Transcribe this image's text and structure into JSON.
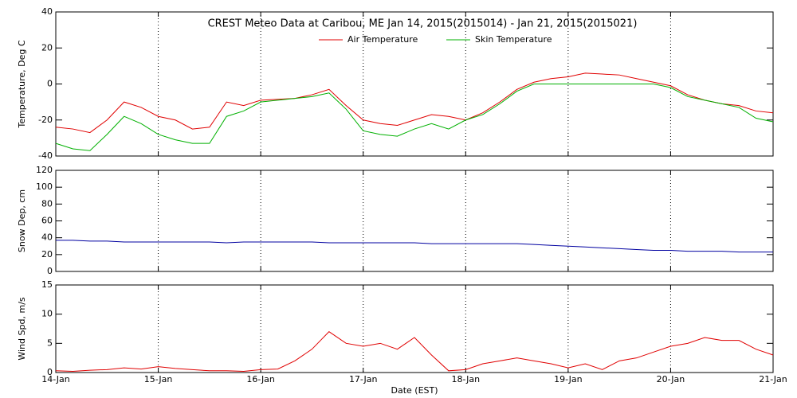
{
  "chart_data": [
    {
      "type": "line",
      "title": "CREST Meteo Data at Caribou, ME   Jan 14, 2015(2015014) - Jan 21, 2015(2015021)",
      "ylabel": "Temperature, Deg C",
      "xlim": [
        0,
        168
      ],
      "ylim": [
        -40,
        40
      ],
      "yticks": [
        -40,
        -20,
        0,
        20,
        40
      ],
      "xticks": [
        {
          "value": 0,
          "label": "14-Jan"
        },
        {
          "value": 24,
          "label": "15-Jan"
        },
        {
          "value": 48,
          "label": "16-Jan"
        },
        {
          "value": 72,
          "label": "17-Jan"
        },
        {
          "value": 96,
          "label": "18-Jan"
        },
        {
          "value": 120,
          "label": "19-Jan"
        },
        {
          "value": 144,
          "label": "20-Jan"
        },
        {
          "value": 168,
          "label": "21-Jan"
        }
      ],
      "grid": true,
      "x": [
        0,
        4,
        8,
        12,
        16,
        20,
        24,
        28,
        32,
        36,
        40,
        44,
        48,
        52,
        56,
        60,
        64,
        68,
        72,
        76,
        80,
        84,
        88,
        92,
        96,
        100,
        104,
        108,
        112,
        116,
        120,
        124,
        128,
        132,
        136,
        140,
        144,
        148,
        152,
        156,
        160,
        164,
        168
      ],
      "series": [
        {
          "name": "Air Temperature",
          "color": "#e00000",
          "values": [
            -24,
            -25,
            -27,
            -20,
            -10,
            -13,
            -18,
            -20,
            -25,
            -24,
            -10,
            -12,
            -9,
            -8.5,
            -8,
            -6,
            -3,
            -12,
            -20,
            -22,
            -23,
            -20,
            -17,
            -18,
            -20,
            -16,
            -10,
            -3,
            1,
            3,
            4,
            6,
            5.5,
            5,
            3,
            1,
            -1,
            -6,
            -9,
            -11,
            -12,
            -15,
            -16
          ]
        },
        {
          "name": "Skin Temperature",
          "color": "#00b000",
          "values": [
            -33,
            -36,
            -37,
            -28,
            -18,
            -22,
            -28,
            -31,
            -33,
            -33,
            -18,
            -15,
            -10,
            -9,
            -8,
            -7,
            -5,
            -14,
            -26,
            -28,
            -29,
            -25,
            -22,
            -25,
            -20,
            -17,
            -11,
            -4,
            0,
            0,
            0,
            0,
            0,
            0,
            0,
            0,
            -2,
            -7,
            -9,
            -11,
            -13,
            -19,
            -21
          ]
        }
      ]
    },
    {
      "type": "line",
      "ylabel": "Snow Dep, cm",
      "xlim": [
        0,
        168
      ],
      "ylim": [
        0,
        120
      ],
      "yticks": [
        0,
        20,
        40,
        60,
        80,
        100,
        120
      ],
      "xticks": [
        {
          "value": 0,
          "label": "14-Jan"
        },
        {
          "value": 24,
          "label": "15-Jan"
        },
        {
          "value": 48,
          "label": "16-Jan"
        },
        {
          "value": 72,
          "label": "17-Jan"
        },
        {
          "value": 96,
          "label": "18-Jan"
        },
        {
          "value": 120,
          "label": "19-Jan"
        },
        {
          "value": 144,
          "label": "20-Jan"
        },
        {
          "value": 168,
          "label": "21-Jan"
        }
      ],
      "grid": true,
      "x": [
        0,
        4,
        8,
        12,
        16,
        20,
        24,
        28,
        32,
        36,
        40,
        44,
        48,
        52,
        56,
        60,
        64,
        68,
        72,
        76,
        80,
        84,
        88,
        92,
        96,
        100,
        104,
        108,
        112,
        116,
        120,
        124,
        128,
        132,
        136,
        140,
        144,
        148,
        152,
        156,
        160,
        164,
        168
      ],
      "series": [
        {
          "color": "#0000a0",
          "values": [
            37,
            37,
            36,
            36,
            35,
            35,
            35,
            35,
            35,
            35,
            34,
            35,
            35,
            35,
            35,
            35,
            34,
            34,
            34,
            34,
            34,
            34,
            33,
            33,
            33,
            33,
            33,
            33,
            32,
            31,
            30,
            29,
            28,
            27,
            26,
            25,
            25,
            24,
            24,
            24,
            23,
            23,
            23
          ]
        }
      ]
    },
    {
      "type": "line",
      "ylabel": "Wind Spd, m/s",
      "xlabel": "Date (EST)",
      "xlim": [
        0,
        168
      ],
      "ylim": [
        0,
        15
      ],
      "yticks": [
        0,
        5,
        10,
        15
      ],
      "xticks": [
        {
          "value": 0,
          "label": "14-Jan"
        },
        {
          "value": 24,
          "label": "15-Jan"
        },
        {
          "value": 48,
          "label": "16-Jan"
        },
        {
          "value": 72,
          "label": "17-Jan"
        },
        {
          "value": 96,
          "label": "18-Jan"
        },
        {
          "value": 120,
          "label": "19-Jan"
        },
        {
          "value": 144,
          "label": "20-Jan"
        },
        {
          "value": 168,
          "label": "21-Jan"
        }
      ],
      "grid": true,
      "x": [
        0,
        4,
        8,
        12,
        16,
        20,
        24,
        28,
        32,
        36,
        40,
        44,
        48,
        52,
        56,
        60,
        64,
        68,
        72,
        76,
        80,
        84,
        88,
        92,
        96,
        100,
        104,
        108,
        112,
        116,
        120,
        124,
        128,
        132,
        136,
        140,
        144,
        148,
        152,
        156,
        160,
        164,
        168
      ],
      "series": [
        {
          "color": "#e00000",
          "values": [
            0.3,
            0.2,
            0.4,
            0.5,
            0.8,
            0.6,
            1.0,
            0.7,
            0.5,
            0.3,
            0.3,
            0.2,
            0.5,
            0.6,
            2,
            4,
            7,
            5,
            4.5,
            5,
            4,
            6,
            3,
            0.3,
            0.5,
            1.5,
            2,
            2.5,
            2,
            1.5,
            0.8,
            1.5,
            0.5,
            2,
            2.5,
            3.5,
            4.5,
            5,
            6,
            5.5,
            5.5,
            4,
            3
          ]
        }
      ]
    }
  ]
}
